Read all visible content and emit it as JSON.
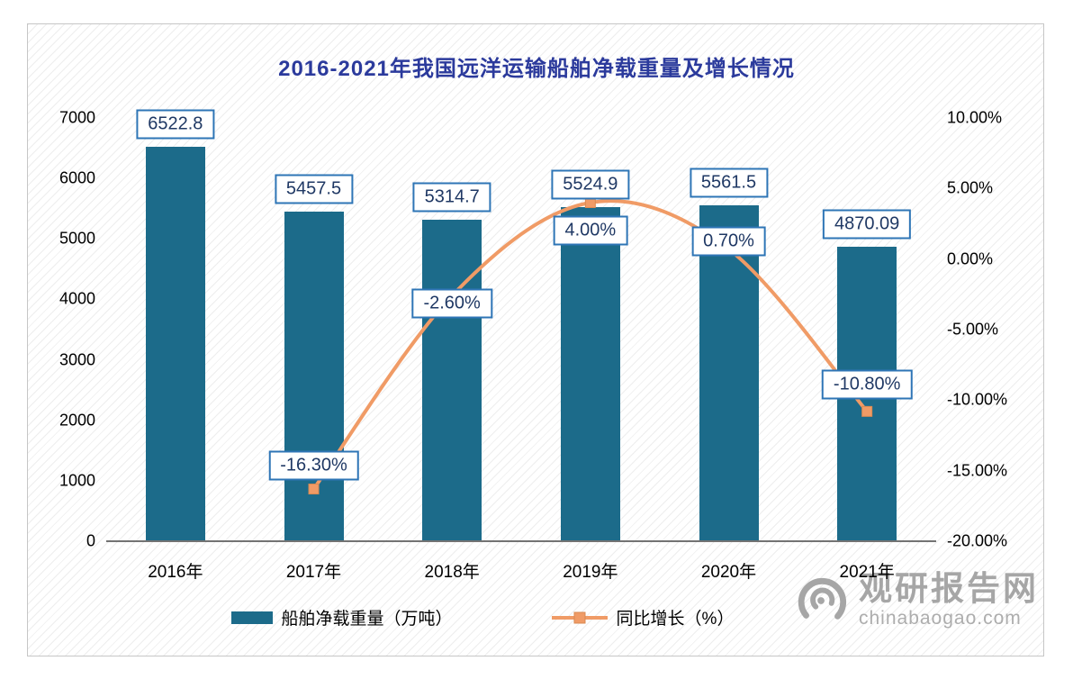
{
  "title": "2016-2021年我国远洋运输船舶净载重量及增长情况",
  "legend": {
    "bar_label": "船舶净载重量（万吨）",
    "line_label": "同比增长（%）"
  },
  "watermark": {
    "name": "观研报告网",
    "domain": "chinabaogao.com"
  },
  "colors": {
    "bar": "#1c6b8a",
    "line": "#f09b66",
    "marker_border": "#d98a52",
    "label_border": "#2e75b6",
    "label_text": "#1f3864",
    "title": "#2b3a9c",
    "watermark": "#a6a6a6"
  },
  "chart_data": {
    "type": "bar",
    "title": "2016-2021年我国远洋运输船舶净载重量及增长情况",
    "categories": [
      "2016年",
      "2017年",
      "2018年",
      "2019年",
      "2020年",
      "2021年"
    ],
    "series": [
      {
        "name": "船舶净载重量（万吨）",
        "type": "bar",
        "axis": "left",
        "values": [
          6522.8,
          5457.5,
          5314.7,
          5524.9,
          5561.5,
          4870.09
        ],
        "data_labels": [
          "6522.8",
          "5457.5",
          "5314.7",
          "5524.9",
          "5561.5",
          "4870.09"
        ]
      },
      {
        "name": "同比增长（%）",
        "type": "line",
        "axis": "right",
        "values": [
          null,
          -16.3,
          -2.6,
          4.0,
          0.7,
          -10.8
        ],
        "data_labels": [
          null,
          "-16.30%",
          "-2.60%",
          "4.00%",
          "0.70%",
          "-10.80%"
        ]
      }
    ],
    "left_axis": {
      "min": 0,
      "max": 7000,
      "step": 1000,
      "ticks": [
        "7000",
        "6000",
        "5000",
        "4000",
        "3000",
        "2000",
        "1000",
        "0"
      ]
    },
    "right_axis": {
      "min": -20,
      "max": 10,
      "step": 5,
      "ticks": [
        "10.00%",
        "5.00%",
        "0.00%",
        "-5.00%",
        "-10.00%",
        "-15.00%",
        "-20.00%"
      ]
    },
    "legend_position": "bottom",
    "grid": false
  }
}
